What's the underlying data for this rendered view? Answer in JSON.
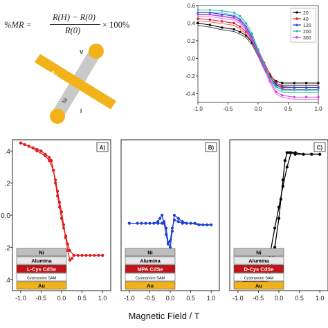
{
  "equation": {
    "prefix": "%MR =",
    "numerator": "R(H) − R(0)",
    "denominator": "R(0)",
    "suffix": "× 100%"
  },
  "device": {
    "label_au": "Au",
    "label_ni": "Ni",
    "label_v": "V",
    "label_i": "I",
    "colors": {
      "au": "#f2b21a",
      "ni_wire": "#cccccc"
    }
  },
  "xlabel": "Magnetic Field / T",
  "stack_labels": {
    "ni": "Ni",
    "alumina": "Alumina",
    "sam": "Cysteamine SAM",
    "au": "Au"
  },
  "colors": {
    "panel_a": "#e31a1c",
    "panel_b": "#1f3fd6",
    "panel_c": "#000000",
    "ni_layer": "#bdbdbd",
    "alumina_layer": "#e8e8e8",
    "cdse_layer": "#c0141a",
    "sam_layer": "#ffffff",
    "au_layer": "#f2b21a"
  },
  "chart_data": [
    {
      "type": "line",
      "id": "inset",
      "xlim": [
        -1.0,
        1.0
      ],
      "ylim": [
        -0.5,
        0.6
      ],
      "xticks": [
        "-1.0",
        "-0.5",
        "0.0",
        "0.5",
        "1.0"
      ],
      "yticks": [
        "-0.4",
        "-0.2",
        "0.0",
        "0.2",
        "0.4",
        "0.6"
      ],
      "legend_placement": "top-right",
      "series": [
        {
          "name": "20",
          "color": "#000000",
          "x": [
            -1.0,
            -0.8,
            -0.6,
            -0.4,
            -0.3,
            -0.2,
            -0.1,
            0.0,
            0.1,
            0.2,
            0.3,
            0.4,
            0.6,
            0.8,
            1.0
          ],
          "y": [
            0.4,
            0.38,
            0.35,
            0.33,
            0.3,
            0.26,
            0.18,
            0.05,
            -0.1,
            -0.2,
            -0.26,
            -0.28,
            -0.28,
            -0.28,
            -0.28
          ]
        },
        {
          "name": "40",
          "color": "#e31a1c",
          "x": [
            -1.0,
            -0.8,
            -0.6,
            -0.4,
            -0.3,
            -0.2,
            -0.1,
            0.0,
            0.1,
            0.2,
            0.3,
            0.4,
            0.6,
            0.8,
            1.0
          ],
          "y": [
            0.45,
            0.44,
            0.42,
            0.4,
            0.36,
            0.3,
            0.22,
            0.1,
            -0.05,
            -0.18,
            -0.28,
            -0.32,
            -0.33,
            -0.33,
            -0.33
          ]
        },
        {
          "name": "120",
          "color": "#1f3fd6",
          "x": [
            -1.0,
            -0.8,
            -0.6,
            -0.4,
            -0.3,
            -0.2,
            -0.1,
            0.0,
            0.1,
            0.2,
            0.3,
            0.4,
            0.6,
            0.8,
            1.0
          ],
          "y": [
            0.52,
            0.52,
            0.5,
            0.48,
            0.44,
            0.36,
            0.24,
            0.08,
            -0.08,
            -0.22,
            -0.3,
            -0.33,
            -0.33,
            -0.33,
            -0.33
          ]
        },
        {
          "name": "200",
          "color": "#2bb3b3",
          "x": [
            -1.0,
            -0.8,
            -0.6,
            -0.4,
            -0.3,
            -0.2,
            -0.1,
            0.0,
            0.1,
            0.2,
            0.3,
            0.4,
            0.6,
            0.8,
            1.0
          ],
          "y": [
            0.55,
            0.55,
            0.54,
            0.52,
            0.48,
            0.4,
            0.28,
            0.1,
            -0.06,
            -0.22,
            -0.32,
            -0.36,
            -0.36,
            -0.36,
            -0.36
          ]
        },
        {
          "name": "300",
          "color": "#e040e0",
          "x": [
            -1.0,
            -0.8,
            -0.6,
            -0.4,
            -0.3,
            -0.2,
            -0.1,
            0.0,
            0.1,
            0.2,
            0.3,
            0.4,
            0.6,
            0.8,
            1.0
          ],
          "y": [
            0.5,
            0.5,
            0.48,
            0.46,
            0.42,
            0.34,
            0.22,
            0.06,
            -0.1,
            -0.26,
            -0.38,
            -0.42,
            -0.44,
            -0.44,
            -0.44
          ]
        }
      ]
    },
    {
      "type": "line",
      "id": "A",
      "panel_label": "A)",
      "cdse_label": "L-Cys CdSe",
      "xlim": [
        -1.2,
        1.2
      ],
      "ylim": [
        -0.47,
        0.47
      ],
      "xticks": [
        "-1.0",
        "-0.5",
        "0.0",
        "0.5",
        "1.0"
      ],
      "yticks": [
        ".4",
        ".2",
        "0.0",
        ".2",
        ".4"
      ],
      "series": [
        {
          "name": "",
          "x": [
            -1.0,
            -0.9,
            -0.8,
            -0.7,
            -0.6,
            -0.5,
            -0.4,
            -0.3,
            -0.25,
            -0.2,
            -0.15,
            -0.1,
            -0.05,
            0.0,
            0.05,
            0.1,
            0.15,
            0.2,
            0.3,
            0.5,
            0.7,
            0.9,
            1.0
          ],
          "y": [
            0.45,
            0.44,
            0.43,
            0.42,
            0.41,
            0.4,
            0.38,
            0.36,
            0.34,
            0.28,
            0.2,
            0.12,
            0.05,
            -0.02,
            -0.08,
            -0.13,
            -0.18,
            -0.22,
            -0.25,
            -0.25,
            -0.25,
            -0.25,
            -0.25
          ]
        },
        {
          "name": "",
          "x": [
            1.0,
            0.8,
            0.6,
            0.4,
            0.3,
            0.25,
            0.2,
            0.15,
            0.1,
            0.05,
            0.0,
            -0.05,
            -0.1,
            -0.15,
            -0.2,
            -0.3,
            -0.4,
            -0.6,
            -0.8,
            -1.0
          ],
          "y": [
            -0.25,
            -0.25,
            -0.25,
            -0.25,
            -0.25,
            -0.27,
            -0.28,
            -0.22,
            -0.14,
            -0.06,
            0.02,
            0.08,
            0.15,
            0.22,
            0.28,
            0.34,
            0.37,
            0.4,
            0.43,
            0.45
          ]
        }
      ]
    },
    {
      "type": "line",
      "id": "B",
      "panel_label": "B)",
      "cdse_label": "MPA CdSe",
      "xlim": [
        -1.2,
        1.2
      ],
      "ylim": [
        -0.47,
        0.47
      ],
      "xticks": [
        "-1.0",
        "-0.5",
        "0.0",
        "0.5",
        "1.0"
      ],
      "yticks": [],
      "series": [
        {
          "name": "",
          "x": [
            -1.0,
            -0.8,
            -0.6,
            -0.4,
            -0.3,
            -0.25,
            -0.2,
            -0.15,
            -0.1,
            -0.05,
            0.0,
            0.05,
            0.1,
            0.2,
            0.3,
            0.5,
            0.7,
            0.9,
            1.0
          ],
          "y": [
            -0.05,
            -0.05,
            -0.05,
            -0.05,
            -0.04,
            -0.02,
            0.0,
            -0.05,
            -0.12,
            -0.18,
            -0.16,
            -0.08,
            -0.03,
            -0.04,
            -0.05,
            -0.05,
            -0.06,
            -0.06,
            -0.06
          ]
        },
        {
          "name": "",
          "x": [
            1.0,
            0.8,
            0.6,
            0.4,
            0.3,
            0.2,
            0.1,
            0.05,
            0.0,
            -0.05,
            -0.1,
            -0.15,
            -0.2,
            -0.3,
            -0.5,
            -0.7,
            -1.0
          ],
          "y": [
            -0.06,
            -0.06,
            -0.05,
            -0.05,
            -0.04,
            -0.02,
            0.0,
            -0.1,
            -0.2,
            -0.17,
            -0.08,
            -0.04,
            -0.05,
            -0.05,
            -0.05,
            -0.05,
            -0.05
          ]
        }
      ]
    },
    {
      "type": "line",
      "id": "C",
      "panel_label": "C)",
      "cdse_label": "D-Cys CdSe",
      "xlim": [
        -1.2,
        1.2
      ],
      "ylim": [
        -0.47,
        0.47
      ],
      "xticks": [
        "-1.0",
        "-0.5",
        "0.0",
        "0.5",
        "1.0"
      ],
      "yticks": [],
      "series": [
        {
          "name": "",
          "x": [
            -1.0,
            -0.8,
            -0.6,
            -0.4,
            -0.3,
            -0.2,
            -0.1,
            0.0,
            0.05,
            0.1,
            0.15,
            0.2,
            0.25,
            0.4,
            0.6,
            0.8,
            1.0
          ],
          "y": [
            -0.43,
            -0.43,
            -0.43,
            -0.43,
            -0.42,
            -0.35,
            -0.2,
            -0.02,
            0.1,
            0.22,
            0.34,
            0.39,
            0.39,
            0.39,
            0.38,
            0.38,
            0.38
          ]
        },
        {
          "name": "",
          "x": [
            1.0,
            0.8,
            0.6,
            0.4,
            0.3,
            0.2,
            0.1,
            0.0,
            -0.1,
            -0.2,
            -0.3,
            -0.35,
            -0.4,
            -0.6,
            -0.8,
            -1.0
          ],
          "y": [
            0.38,
            0.38,
            0.38,
            0.38,
            0.39,
            0.3,
            0.18,
            0.05,
            -0.08,
            -0.22,
            -0.35,
            -0.42,
            -0.41,
            -0.41,
            -0.41,
            -0.42
          ]
        }
      ]
    }
  ]
}
